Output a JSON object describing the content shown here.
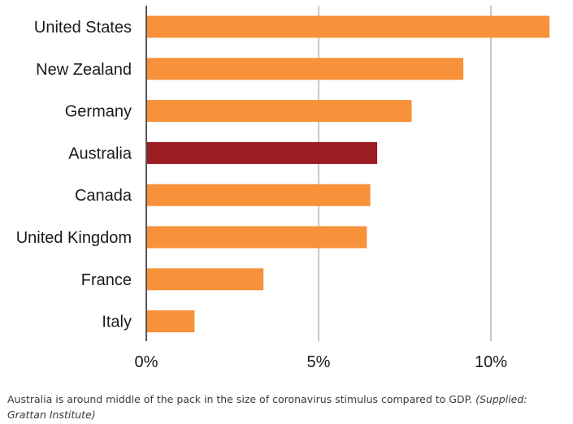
{
  "chart_data": {
    "type": "bar",
    "orientation": "horizontal",
    "categories": [
      "United States",
      "New Zealand",
      "Germany",
      "Australia",
      "Canada",
      "United Kingdom",
      "France",
      "Italy"
    ],
    "values": [
      11.7,
      9.2,
      7.7,
      6.7,
      6.5,
      6.4,
      3.4,
      1.4
    ],
    "highlight": "Australia",
    "colors": {
      "default": "#f7913a",
      "highlight": "#9b1c22",
      "grid": "#c8c8c8",
      "axis": "#555555"
    },
    "xlim": [
      0,
      12
    ],
    "xticks": [
      0,
      5,
      10
    ],
    "xtick_labels": [
      "0%",
      "5%",
      "10%"
    ],
    "grid": true
  },
  "caption": {
    "text": "Australia is around middle of the pack in the size of coronavirus stimulus compared to GDP.",
    "credit": "(Supplied: Grattan Institute)"
  }
}
